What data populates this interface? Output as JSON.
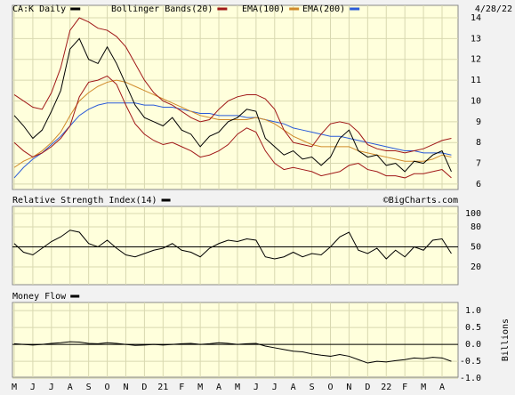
{
  "chart_data": [
    {
      "type": "line",
      "date": "4/28/22",
      "series": [
        {
          "name": "CA:K Daily",
          "color": "#000000",
          "values": [
            9.3,
            8.8,
            8.2,
            8.6,
            9.5,
            10.5,
            12.5,
            13.0,
            12.0,
            11.8,
            12.6,
            11.8,
            10.8,
            9.8,
            9.2,
            9.0,
            8.8,
            9.2,
            8.6,
            8.4,
            7.8,
            8.3,
            8.5,
            9.0,
            9.2,
            9.6,
            9.5,
            8.2,
            7.8,
            7.4,
            7.6,
            7.2,
            7.3,
            6.9,
            7.3,
            8.2,
            8.6,
            7.6,
            7.3,
            7.4,
            6.9,
            7.0,
            6.6,
            7.1,
            7.0,
            7.4,
            7.6,
            6.6
          ]
        },
        {
          "name": "Bollinger Bands(20)",
          "color": "#a01818",
          "upper": [
            10.3,
            10.0,
            9.7,
            9.6,
            10.4,
            11.6,
            13.4,
            14.0,
            13.8,
            13.5,
            13.4,
            13.1,
            12.6,
            11.8,
            11.0,
            10.4,
            10.0,
            9.8,
            9.5,
            9.2,
            9.0,
            9.1,
            9.6,
            10.0,
            10.2,
            10.3,
            10.3,
            10.1,
            9.6,
            8.6,
            8.0,
            7.9,
            7.8,
            8.4,
            8.9,
            9.0,
            8.9,
            8.5,
            7.9,
            7.7,
            7.6,
            7.6,
            7.5,
            7.6,
            7.7,
            7.9,
            8.1,
            8.2
          ],
          "lower": [
            8.0,
            7.6,
            7.3,
            7.5,
            7.8,
            8.2,
            8.8,
            10.2,
            10.9,
            11.0,
            11.2,
            10.8,
            9.8,
            8.9,
            8.4,
            8.1,
            7.9,
            8.0,
            7.8,
            7.6,
            7.3,
            7.4,
            7.6,
            7.9,
            8.4,
            8.7,
            8.5,
            7.6,
            7.0,
            6.7,
            6.8,
            6.7,
            6.6,
            6.4,
            6.5,
            6.6,
            6.9,
            7.0,
            6.7,
            6.6,
            6.4,
            6.4,
            6.3,
            6.5,
            6.5,
            6.6,
            6.7,
            6.3
          ]
        },
        {
          "name": "EMA(100)",
          "color": "#d08a2a",
          "values": [
            6.8,
            7.1,
            7.3,
            7.6,
            8.0,
            8.5,
            9.3,
            10.0,
            10.4,
            10.7,
            10.9,
            11.0,
            10.9,
            10.7,
            10.5,
            10.3,
            10.1,
            9.9,
            9.7,
            9.5,
            9.3,
            9.2,
            9.1,
            9.1,
            9.1,
            9.1,
            9.2,
            9.1,
            8.9,
            8.6,
            8.3,
            8.1,
            7.9,
            7.8,
            7.8,
            7.8,
            7.8,
            7.6,
            7.5,
            7.4,
            7.3,
            7.2,
            7.1,
            7.1,
            7.1,
            7.2,
            7.4,
            7.3
          ]
        },
        {
          "name": "EMA(200)",
          "color": "#2a5ad8",
          "values": [
            6.3,
            6.8,
            7.2,
            7.5,
            7.9,
            8.3,
            8.8,
            9.3,
            9.6,
            9.8,
            9.9,
            9.9,
            9.9,
            9.9,
            9.8,
            9.8,
            9.7,
            9.7,
            9.6,
            9.5,
            9.4,
            9.4,
            9.3,
            9.3,
            9.3,
            9.2,
            9.2,
            9.1,
            9.0,
            8.9,
            8.7,
            8.6,
            8.5,
            8.4,
            8.3,
            8.3,
            8.2,
            8.1,
            8.0,
            7.9,
            7.8,
            7.7,
            7.6,
            7.6,
            7.5,
            7.5,
            7.5,
            7.4
          ]
        }
      ],
      "ylim": [
        5.74,
        14.6
      ],
      "yticks": [
        6,
        7,
        8,
        9,
        10,
        11,
        12,
        13,
        14
      ],
      "grid": true
    },
    {
      "type": "line",
      "title": "Relative Strength Index(14)",
      "source": "©BigCharts.com",
      "reference": 50,
      "series": [
        {
          "color": "#000000",
          "values": [
            55,
            42,
            38,
            48,
            58,
            65,
            75,
            72,
            55,
            50,
            60,
            48,
            38,
            35,
            40,
            45,
            48,
            55,
            45,
            42,
            35,
            48,
            55,
            60,
            58,
            62,
            60,
            35,
            32,
            35,
            42,
            35,
            40,
            38,
            50,
            65,
            72,
            45,
            40,
            48,
            32,
            45,
            35,
            50,
            45,
            60,
            62,
            40
          ]
        }
      ],
      "ylim": [
        -6.7,
        110.7
      ],
      "yticks": [
        20,
        50,
        80,
        100
      ],
      "grid": true
    },
    {
      "type": "line",
      "title": "Money Flow",
      "ylabel": "Billions",
      "reference": 0,
      "categories": [
        "M",
        null,
        "J",
        null,
        "J",
        null,
        "A",
        null,
        "S",
        null,
        "O",
        null,
        "N",
        null,
        "D",
        null,
        "21",
        null,
        "F",
        null,
        "M",
        null,
        "A",
        null,
        "M",
        null,
        "J",
        null,
        "J",
        null,
        "A",
        null,
        "S",
        null,
        "O",
        null,
        "N",
        null,
        "D",
        null,
        "22",
        null,
        "F",
        null,
        "M",
        null,
        "A",
        null
      ],
      "series": [
        {
          "color": "#000000",
          "values": [
            0.02,
            0.0,
            -0.02,
            0.0,
            0.03,
            0.05,
            0.08,
            0.07,
            0.03,
            0.02,
            0.05,
            0.03,
            0.0,
            -0.03,
            -0.02,
            0.0,
            -0.02,
            0.0,
            0.02,
            0.03,
            0.0,
            0.02,
            0.05,
            0.03,
            0.0,
            0.02,
            0.03,
            -0.05,
            -0.1,
            -0.15,
            -0.2,
            -0.22,
            -0.28,
            -0.32,
            -0.35,
            -0.3,
            -0.35,
            -0.45,
            -0.55,
            -0.5,
            -0.52,
            -0.48,
            -0.45,
            -0.4,
            -0.42,
            -0.38,
            -0.4,
            -0.5
          ]
        }
      ],
      "ylim": [
        -0.97,
        1.24
      ],
      "yticks": [
        {
          "value": 1.0,
          "label": "1.0"
        },
        0.5,
        {
          "value": 0.0,
          "label": "0.0"
        },
        -0.5,
        {
          "value": -1.0,
          "label": "-1.0"
        }
      ],
      "grid": true
    }
  ]
}
